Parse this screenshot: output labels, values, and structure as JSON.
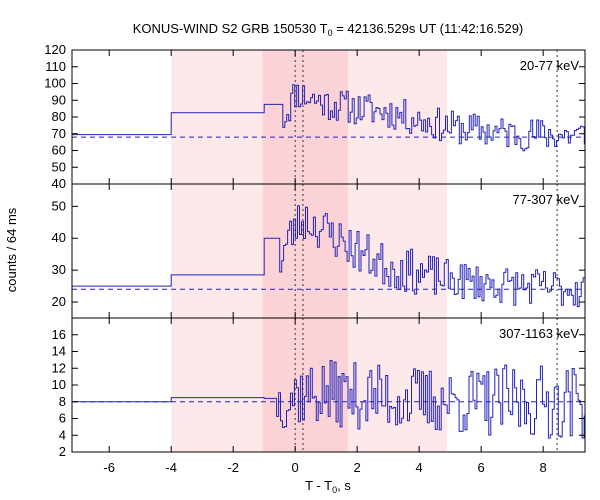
{
  "chart_data": {
    "type": "line",
    "title": {
      "prefix": "KONUS-WIND S2 GRB 150530 T",
      "sub": "0",
      "suffix": " = 42136.529s UT (11:42:16.529)"
    },
    "xlabel": {
      "prefix": "T - T",
      "sub": "0",
      "suffix": ", s"
    },
    "ylabel": "counts / 64 ms",
    "xlim": [
      -7.2,
      9.35
    ],
    "x_ticks": [
      -6,
      -4,
      -2,
      0,
      2,
      4,
      6,
      8
    ],
    "shaded_regions": [
      {
        "x": [
          -4.0,
          4.9
        ],
        "color": "#fde8ea"
      },
      {
        "x": [
          -1.05,
          1.7
        ],
        "color": "#fbd3d6"
      }
    ],
    "vlines": [
      {
        "x": 0.0,
        "style": "dotted"
      },
      {
        "x": 0.25,
        "style": "dotted"
      },
      {
        "x": 8.45,
        "style": "dotted"
      }
    ],
    "line_color": "#2222bb",
    "panels": [
      {
        "label": "20-77 keV",
        "ylim": [
          40,
          120
        ],
        "y_ticks": [
          40,
          50,
          60,
          70,
          80,
          90,
          100,
          110,
          120
        ],
        "background": 68,
        "pre_steps": [
          [
            -7.2,
            -4.0,
            69.5
          ],
          [
            -4.0,
            -1.0,
            82.5
          ],
          [
            -1.0,
            -0.4,
            87.5
          ]
        ],
        "lc_start": -0.4,
        "lc_step": 0.064,
        "seed": 11,
        "profile": [
          [
            -0.4,
            80,
            12
          ],
          [
            0.0,
            95,
            10
          ],
          [
            0.35,
            92,
            10
          ],
          [
            1.0,
            88,
            10
          ],
          [
            2.0,
            85,
            10
          ],
          [
            3.0,
            83,
            10
          ],
          [
            4.0,
            78,
            10
          ],
          [
            5.0,
            74,
            10
          ],
          [
            7.0,
            70,
            10
          ],
          [
            9.35,
            69,
            10
          ]
        ]
      },
      {
        "label": "77-307 keV",
        "ylim": [
          15,
          57
        ],
        "y_ticks": [
          20,
          30,
          40,
          50
        ],
        "background": 24,
        "pre_steps": [
          [
            -7.2,
            -4.0,
            25.0
          ],
          [
            -4.0,
            -1.0,
            28.5
          ],
          [
            -1.0,
            -0.5,
            40.0
          ]
        ],
        "lc_start": -0.5,
        "lc_step": 0.064,
        "seed": 23,
        "profile": [
          [
            -0.5,
            34,
            9
          ],
          [
            0.0,
            44,
            7
          ],
          [
            0.3,
            46,
            7
          ],
          [
            1.0,
            42,
            7
          ],
          [
            2.0,
            36,
            7
          ],
          [
            3.0,
            31,
            7
          ],
          [
            4.0,
            29,
            7
          ],
          [
            5.0,
            27,
            6
          ],
          [
            7.0,
            25,
            6
          ],
          [
            9.35,
            24,
            6
          ]
        ]
      },
      {
        "label": "307-1163 keV",
        "ylim": [
          2,
          18
        ],
        "y_ticks": [
          2,
          4,
          6,
          8,
          10,
          12,
          14,
          16
        ],
        "background": 8,
        "pre_steps": [
          [
            -7.2,
            -4.0,
            8.0
          ],
          [
            -4.0,
            -1.0,
            8.5
          ],
          [
            -1.0,
            -0.6,
            8.4
          ]
        ],
        "lc_start": -0.6,
        "lc_step": 0.064,
        "seed": 37,
        "profile": [
          [
            -0.6,
            8,
            3.5
          ],
          [
            0.0,
            9,
            4
          ],
          [
            1.0,
            9,
            4
          ],
          [
            3.0,
            8.5,
            4
          ],
          [
            5.0,
            8,
            4
          ],
          [
            7.0,
            8,
            4.5
          ],
          [
            9.35,
            8,
            4.5
          ]
        ]
      }
    ]
  }
}
